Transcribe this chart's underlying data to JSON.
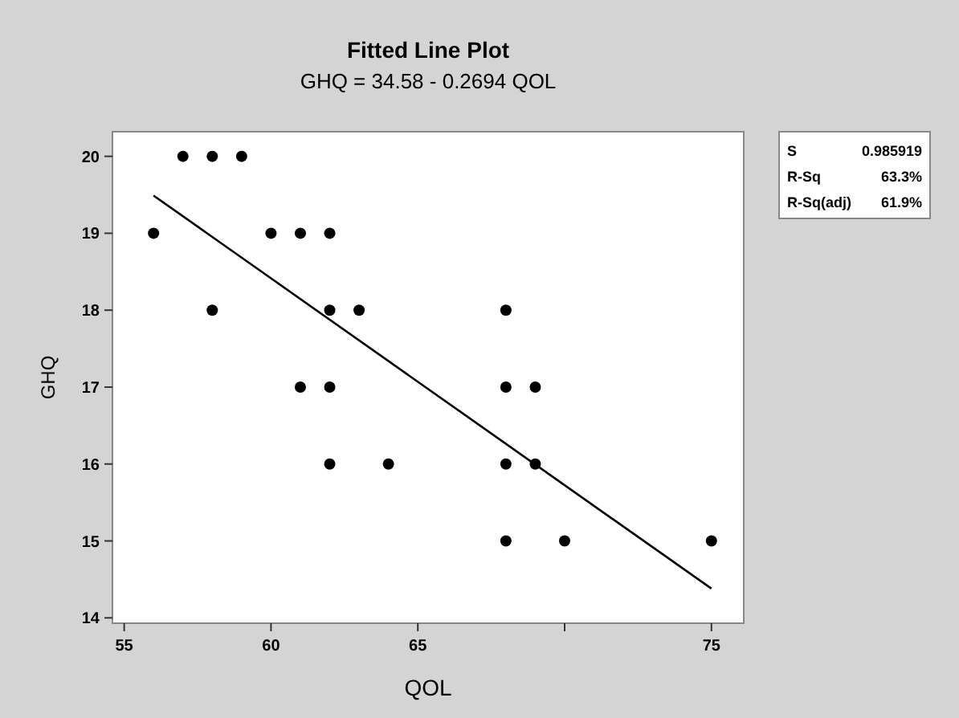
{
  "chart_data": {
    "type": "scatter",
    "title": "Fitted Line Plot",
    "subtitle": "GHQ = 34.58 - 0.2694 QOL",
    "xlabel": "QOL",
    "ylabel": "GHQ",
    "xlim": [
      54.6,
      76.1
    ],
    "ylim": [
      13.93,
      20.32
    ],
    "xticks": [
      55,
      60,
      65,
      {
        "value": 70,
        "label": null
      },
      75
    ],
    "yticks": [
      14,
      15,
      16,
      17,
      18,
      19,
      20
    ],
    "grid": false,
    "series": [
      {
        "color": "#000000",
        "marker": "circle",
        "x": [
          56,
          57,
          58,
          59,
          58,
          60,
          61,
          62,
          61,
          62,
          62,
          62,
          63,
          64,
          68,
          68,
          68,
          68,
          69,
          69,
          70,
          75
        ],
        "values": [
          19,
          20,
          20,
          20,
          18,
          19,
          19,
          19,
          17,
          18,
          17,
          16,
          18,
          16,
          18,
          17,
          16,
          15,
          17,
          16,
          15,
          15
        ]
      },
      {
        "type": "line",
        "color": "#000000",
        "marker": "none",
        "line_style": "solid",
        "x": [
          56,
          75
        ],
        "values": [
          19.49,
          14.38
        ]
      }
    ],
    "annotations": [
      "S",
      "0.985919",
      "R-Sq",
      "63.3%",
      "R-Sq(adj)",
      "61.9%"
    ]
  }
}
